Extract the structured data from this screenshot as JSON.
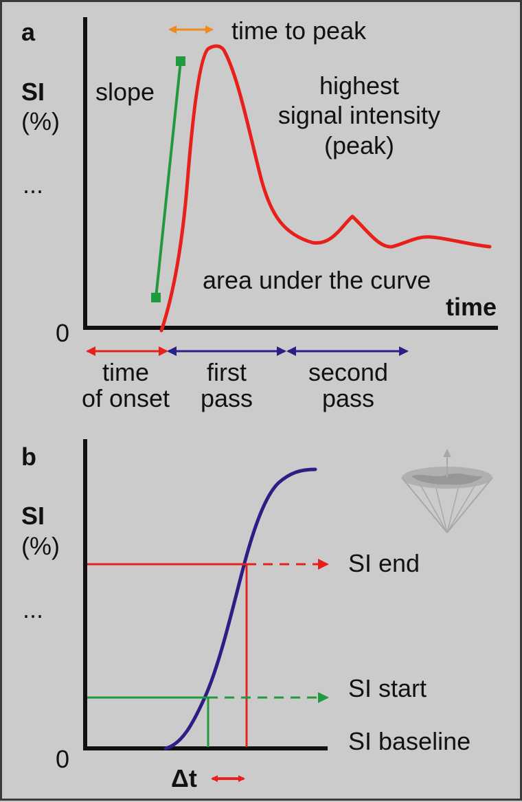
{
  "panel_a": {
    "label": "a",
    "y_label": "SI",
    "y_unit": "(%)",
    "y_ellipsis": "...",
    "zero": "0",
    "x_label": "time",
    "time_to_peak": "time to peak",
    "slope": "slope",
    "peak_line1": "highest",
    "peak_line2": "signal intensity",
    "peak_line3": "(peak)",
    "auc": "area under the curve",
    "onset_line1": "time",
    "onset_line2": "of onset",
    "first_line1": "first",
    "first_line2": "pass",
    "second_line1": "second",
    "second_line2": "pass"
  },
  "panel_b": {
    "label": "b",
    "y_label": "SI",
    "y_unit": "(%)",
    "y_ellipsis": "...",
    "zero": "0",
    "si_end": "SI end",
    "si_start": "SI start",
    "si_baseline": "SI baseline",
    "delta_t": "Δt"
  },
  "colors": {
    "curve_a": "#e8201c",
    "curve_b": "#2b1f86",
    "slope": "#1f9a3c",
    "onset_arrow": "#e8201c",
    "pass_arrows": "#2b1f86",
    "time_to_peak_arrow": "#f08a1a",
    "si_end": "#e8201c",
    "si_start": "#1f9a3c",
    "axes": "#111111"
  }
}
